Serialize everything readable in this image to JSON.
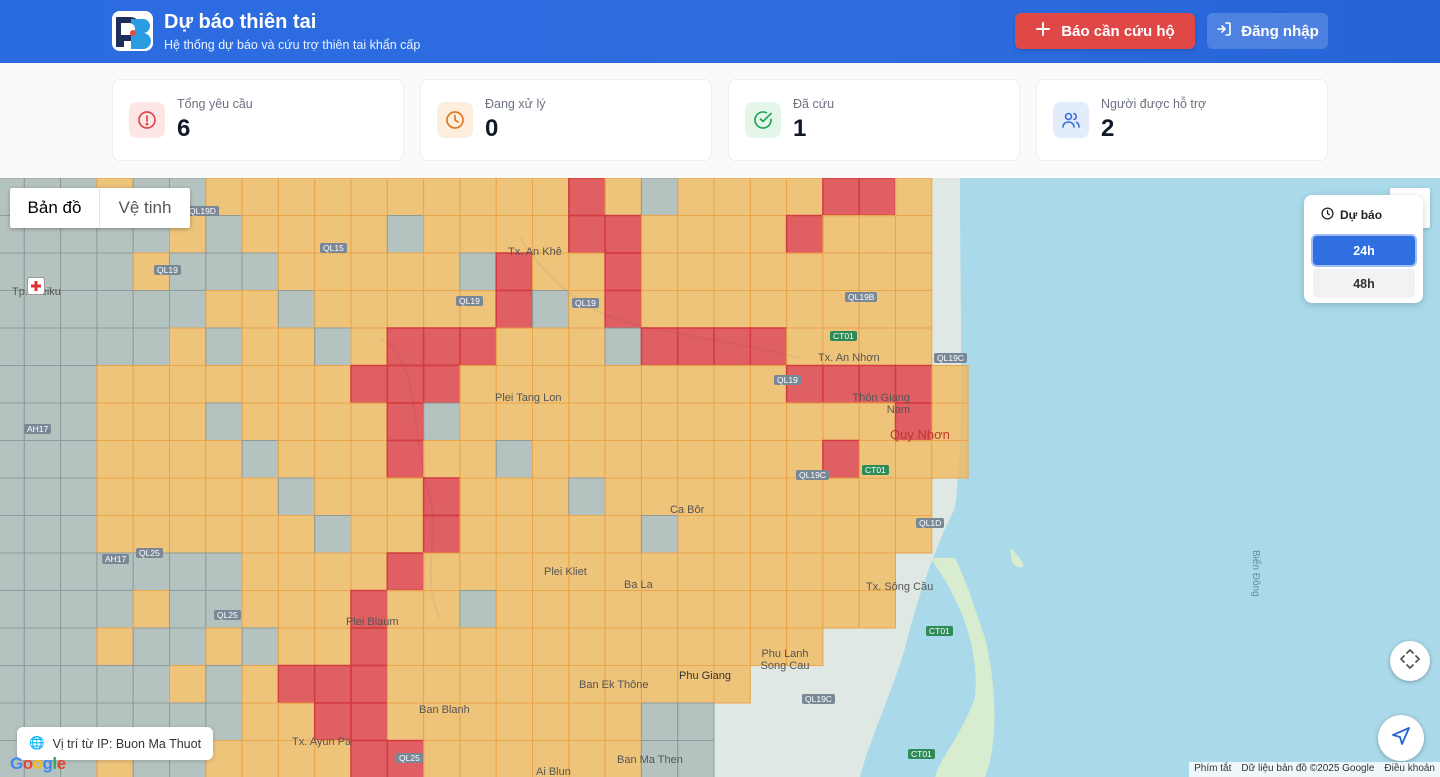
{
  "header": {
    "title": "Dự báo thiên tai",
    "subtitle": "Hệ thống dự báo và cứu trợ thiên tai khẩn cấp",
    "report_button": "Báo cần cứu hộ",
    "login_button": "Đăng nhập"
  },
  "stats": [
    {
      "label": "Tổng yêu cầu",
      "value": "6",
      "icon": "alert-circle-icon",
      "color": "#e24a4a"
    },
    {
      "label": "Đang xử lý",
      "value": "0",
      "icon": "clock-icon",
      "color": "#f08a24"
    },
    {
      "label": "Đã cứu",
      "value": "1",
      "icon": "check-circle-icon",
      "color": "#22a55a"
    },
    {
      "label": "Người được hỗ trợ",
      "value": "2",
      "icon": "users-icon",
      "color": "#3b6fd8"
    }
  ],
  "map": {
    "type_map": "Bản đồ",
    "type_satellite": "Vệ tinh",
    "forecast_title": "Dự báo",
    "forecast_24": "24h",
    "forecast_48": "48h",
    "forecast_selected": "24h",
    "ip_location": "Vị trí từ IP: Buon Ma Thuot",
    "google": "Google",
    "attribution": {
      "shortcuts": "Phím tắt",
      "data": "Dữ liệu bản đồ ©2025 Google",
      "terms": "Điều khoản"
    },
    "places": [
      "Tp. Pleiku",
      "Tx. An Khê",
      "Plei Tang Lon",
      "Tx. An Nhơn",
      "Thôn Giang Nam",
      "Quy Nhơn",
      "Ca Bôr",
      "Plei Kliet",
      "Ba La",
      "Tx. Sông Cầu",
      "Plei Blaum",
      "Phu Lanh Song Cau",
      "Phu Giang",
      "Ban Ek Thône",
      "Ban Blanh",
      "Tx. Ayun Pa",
      "Ban Ma Then",
      "Ai Blun",
      "Biển Đông"
    ],
    "roads": [
      "QL19D",
      "QL19",
      "QL19",
      "QL19",
      "QL19",
      "QL19B",
      "QL19C",
      "QL19C",
      "QL15",
      "AH17",
      "AH17",
      "QL25",
      "QL25",
      "QL25",
      "CT01",
      "CT01",
      "CT01",
      "CT01",
      "QL1D",
      "QL19C"
    ],
    "colors": {
      "high_risk": "#e0474c",
      "medium_risk": "#f2b85c",
      "low_area": "#a9b8b6",
      "sea": "#aadaea"
    }
  }
}
